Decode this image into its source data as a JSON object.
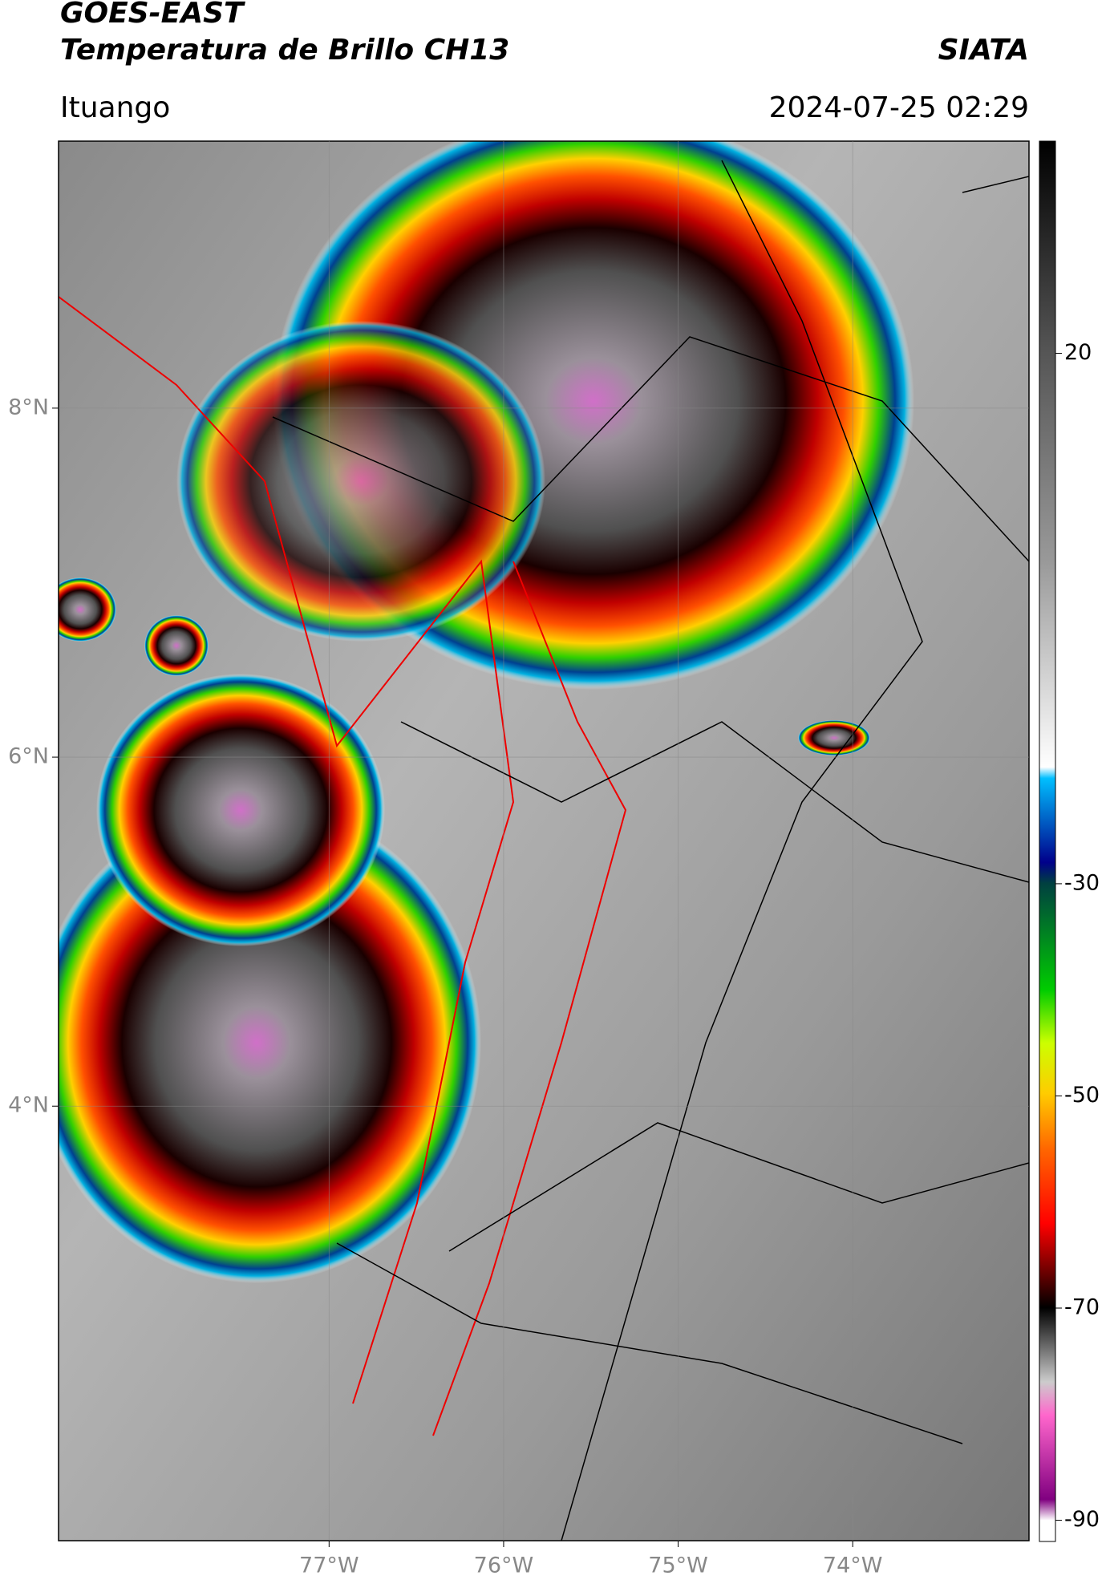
{
  "header": {
    "title": "GOES-EAST",
    "subtitle": "Temperatura de Brillo CH13",
    "source": "SIATA",
    "location": "Ituango",
    "datetime": "2024-07-25 02:29"
  },
  "map": {
    "xlim": [
      -78.55,
      -72.99
    ],
    "ylim": [
      1.51,
      9.53
    ],
    "xticks": [
      {
        "value": -77,
        "label": "77°W"
      },
      {
        "value": -76,
        "label": "76°W"
      },
      {
        "value": -75,
        "label": "75°W"
      },
      {
        "value": -74,
        "label": "74°W"
      }
    ],
    "yticks": [
      {
        "value": 8,
        "label": "8°N"
      },
      {
        "value": 6,
        "label": "6°N"
      },
      {
        "value": 4,
        "label": "4°N"
      }
    ],
    "grid": true
  },
  "colorbar": {
    "lim": [
      -92,
      40
    ],
    "ticks": [
      20,
      -30,
      -50,
      -70,
      -90
    ]
  }
}
